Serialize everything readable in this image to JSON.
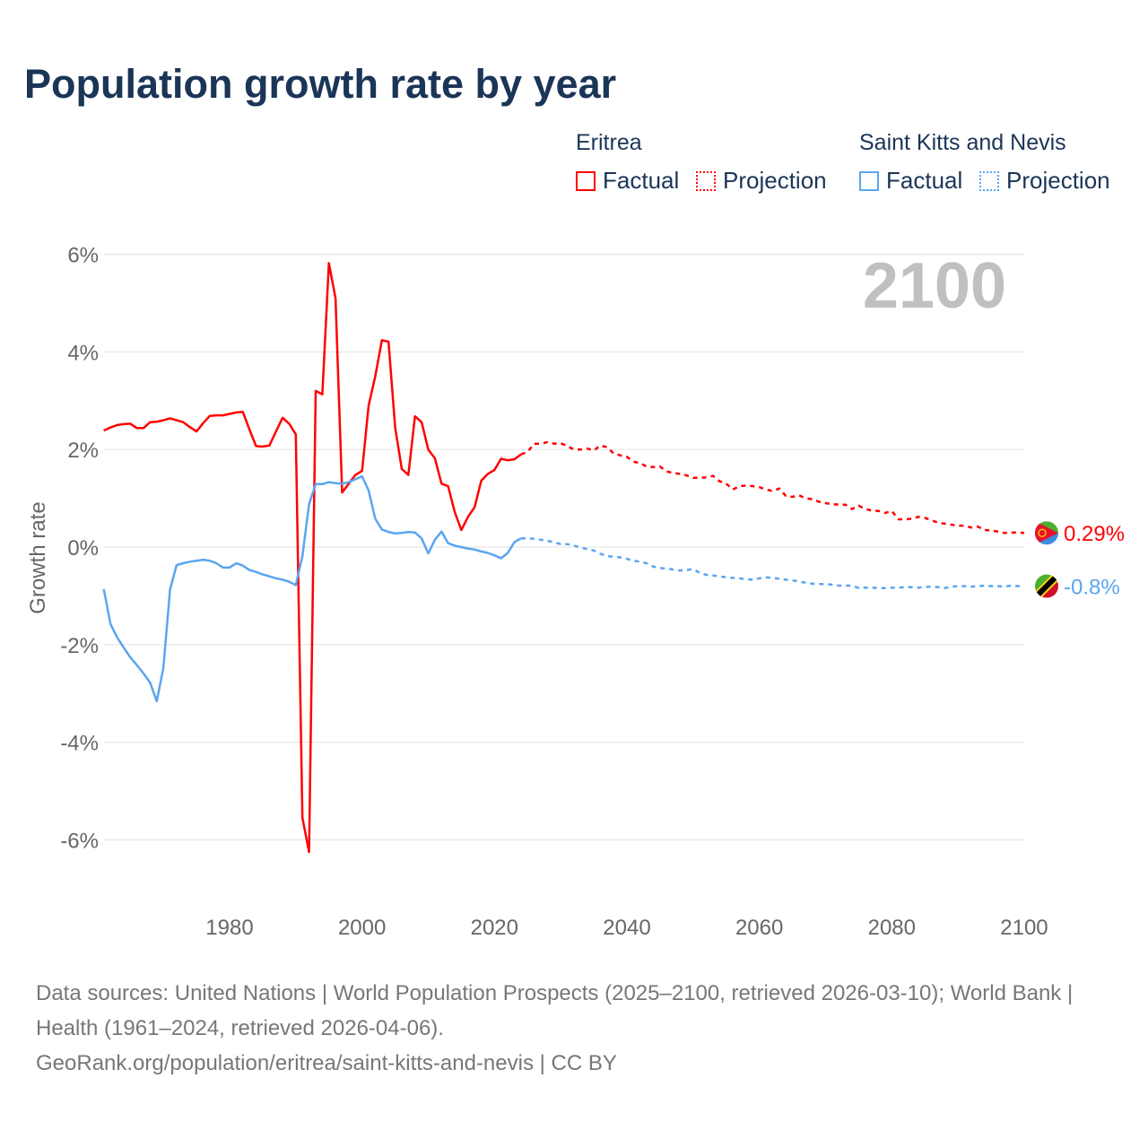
{
  "title": "Population growth rate by year",
  "legend": {
    "groups": [
      {
        "name": "Eritrea",
        "factual": "Factual",
        "projection": "Projection"
      },
      {
        "name": "Saint Kitts and Nevis",
        "factual": "Factual",
        "projection": "Projection"
      }
    ]
  },
  "current_year": "2100",
  "footer": {
    "sources": "Data sources: United Nations | World Population Prospects (2025–2100, retrieved 2026-03-10); World Bank | Health (1961–2024, retrieved 2026-04-06).",
    "link": "GeoRank.org/population/eritrea/saint-kitts-and-nevis | CC BY"
  },
  "chart_data": {
    "type": "line",
    "title": "Population growth rate by year",
    "xlabel": "",
    "ylabel": "Growth rate",
    "xlim": [
      1961,
      2100
    ],
    "ylim": [
      -7,
      6.5
    ],
    "x_ticks": [
      1980,
      2000,
      2020,
      2040,
      2060,
      2080,
      2100
    ],
    "y_ticks": [
      6,
      4,
      2,
      0,
      -2,
      -4,
      -6
    ],
    "y_tick_labels": [
      "6%",
      "4%",
      "2%",
      "0%",
      "-2%",
      "-4%",
      "-6%"
    ],
    "grid": true,
    "legend_position": "top-right",
    "series": [
      {
        "name": "Eritrea",
        "color": "#ff0000",
        "end_label": "0.29%",
        "factual_start": 1961,
        "factual": [
          2.39,
          2.45,
          2.5,
          2.52,
          2.53,
          2.44,
          2.44,
          2.56,
          2.57,
          2.6,
          2.64,
          2.6,
          2.56,
          2.46,
          2.37,
          2.54,
          2.69,
          2.7,
          2.7,
          2.73,
          2.76,
          2.77,
          2.41,
          2.07,
          2.06,
          2.08,
          2.37,
          2.65,
          2.53,
          2.31,
          -5.55,
          -6.25,
          3.2,
          3.13,
          5.82,
          5.1,
          1.12,
          1.3,
          1.48,
          1.56,
          2.9,
          3.5,
          4.24,
          4.21,
          2.45,
          1.6,
          1.48,
          2.68,
          2.56,
          2.0,
          1.82,
          1.3,
          1.25,
          0.72,
          0.35,
          0.62,
          0.82,
          1.36,
          1.5,
          1.58,
          1.81,
          1.78,
          1.8,
          1.9
        ],
        "projection_start": 2024,
        "projection": [
          1.9,
          1.95,
          2.12,
          2.12,
          2.15,
          2.12,
          2.13,
          2.07,
          2.0,
          2.0,
          2.02,
          1.98,
          2.08,
          2.05,
          1.92,
          1.88,
          1.85,
          1.75,
          1.72,
          1.65,
          1.64,
          1.65,
          1.55,
          1.52,
          1.5,
          1.47,
          1.42,
          1.42,
          1.43,
          1.46,
          1.35,
          1.3,
          1.18,
          1.25,
          1.26,
          1.25,
          1.23,
          1.18,
          1.15,
          1.2,
          1.05,
          1.03,
          1.06,
          1.0,
          0.98,
          0.93,
          0.9,
          0.88,
          0.87,
          0.87,
          0.78,
          0.85,
          0.78,
          0.75,
          0.74,
          0.7,
          0.74,
          0.57,
          0.57,
          0.58,
          0.62,
          0.6,
          0.55,
          0.5,
          0.48,
          0.46,
          0.44,
          0.44,
          0.4,
          0.42,
          0.35,
          0.34,
          0.32,
          0.29,
          0.3,
          0.3,
          0.29
        ]
      },
      {
        "name": "Saint Kitts and Nevis",
        "color": "#5aa5ef",
        "end_label": "-0.8%",
        "factual_start": 1961,
        "factual": [
          -0.86,
          -1.57,
          -1.85,
          -2.06,
          -2.26,
          -2.42,
          -2.59,
          -2.78,
          -3.16,
          -2.47,
          -0.87,
          -0.37,
          -0.33,
          -0.3,
          -0.28,
          -0.26,
          -0.28,
          -0.33,
          -0.42,
          -0.42,
          -0.33,
          -0.38,
          -0.47,
          -0.51,
          -0.56,
          -0.6,
          -0.64,
          -0.67,
          -0.71,
          -0.78,
          -0.18,
          0.88,
          1.29,
          1.29,
          1.33,
          1.31,
          1.3,
          1.33,
          1.39,
          1.45,
          1.16,
          0.58,
          0.36,
          0.31,
          0.28,
          0.29,
          0.31,
          0.3,
          0.18,
          -0.13,
          0.15,
          0.32,
          0.08,
          0.03,
          0.0,
          -0.03,
          -0.05,
          -0.09,
          -0.12,
          -0.17,
          -0.23,
          -0.12,
          0.1,
          0.18
        ],
        "projection_start": 2024,
        "projection": [
          0.18,
          0.18,
          0.17,
          0.15,
          0.13,
          0.1,
          0.06,
          0.06,
          0.03,
          -0.01,
          -0.04,
          -0.07,
          -0.14,
          -0.18,
          -0.2,
          -0.21,
          -0.24,
          -0.28,
          -0.3,
          -0.33,
          -0.4,
          -0.43,
          -0.44,
          -0.46,
          -0.48,
          -0.47,
          -0.45,
          -0.53,
          -0.57,
          -0.58,
          -0.6,
          -0.62,
          -0.63,
          -0.64,
          -0.66,
          -0.67,
          -0.64,
          -0.62,
          -0.63,
          -0.65,
          -0.67,
          -0.68,
          -0.71,
          -0.73,
          -0.75,
          -0.76,
          -0.76,
          -0.77,
          -0.79,
          -0.79,
          -0.79,
          -0.84,
          -0.83,
          -0.83,
          -0.84,
          -0.84,
          -0.83,
          -0.83,
          -0.82,
          -0.82,
          -0.83,
          -0.82,
          -0.81,
          -0.82,
          -0.84,
          -0.81,
          -0.8,
          -0.8,
          -0.81,
          -0.8,
          -0.79,
          -0.8,
          -0.8,
          -0.81,
          -0.79,
          -0.8,
          -0.8
        ]
      }
    ]
  }
}
